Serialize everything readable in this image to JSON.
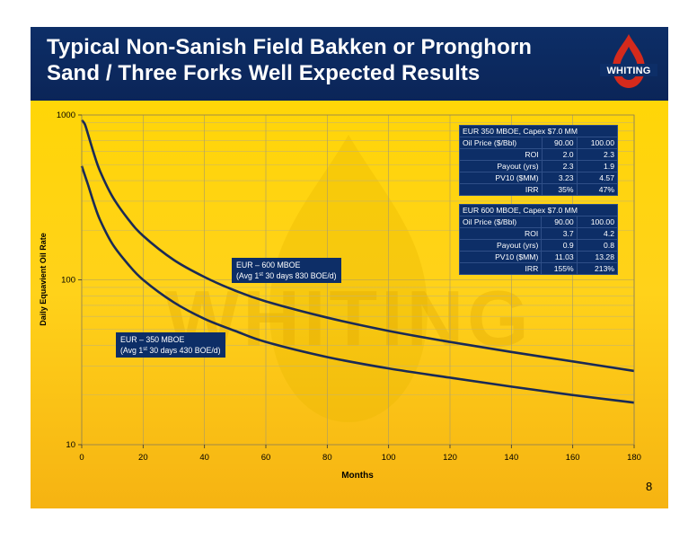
{
  "header": {
    "title_line1": "Typical Non-Sanish Field Bakken or Pronghorn",
    "title_line2": "Sand / Three Forks Well Expected Results",
    "logo_text": "WHITING"
  },
  "watermark_text": "WHITING",
  "page_number": "8",
  "colors": {
    "banner": "#0d2e67",
    "background": "#ffd21a",
    "curve": "#1a2a55",
    "table": "#0d2e67"
  },
  "chart_data": {
    "type": "line",
    "title": "",
    "xlabel": "Months",
    "ylabel": "Daily Equavient Oil Rate",
    "xlim": [
      0,
      180
    ],
    "ylim": [
      10,
      1000
    ],
    "yscale": "log",
    "x_ticks": [
      "0",
      "20",
      "40",
      "60",
      "80",
      "100",
      "120",
      "140",
      "160",
      "180"
    ],
    "y_ticks": [
      "10",
      "100",
      "1000"
    ],
    "grid": true,
    "series": [
      {
        "name": "EUR – 600 MBOE",
        "x": [
          0,
          1,
          2,
          4,
          6,
          10,
          15,
          20,
          30,
          40,
          50,
          60,
          80,
          100,
          120,
          140,
          160,
          180
        ],
        "y": [
          930,
          880,
          770,
          580,
          455,
          320,
          235,
          185,
          132,
          104,
          86,
          74,
          59,
          49,
          42,
          36.5,
          32,
          28
        ]
      },
      {
        "name": "EUR – 350 MBOE",
        "x": [
          0,
          2,
          4,
          6,
          10,
          15,
          20,
          30,
          40,
          50,
          60,
          80,
          100,
          120,
          140,
          160,
          180
        ],
        "y": [
          490,
          380,
          290,
          230,
          165,
          125,
          100,
          73,
          58,
          49,
          42,
          34,
          29,
          25.5,
          22.5,
          20,
          18
        ]
      }
    ],
    "annotations": [
      {
        "line1": "EUR – 600 MBOE",
        "line2_pre": "(Avg 1",
        "line2_sup": "st",
        "line2_post": " 30 days 830 BOE/d)"
      },
      {
        "line1": "EUR – 350 MBOE",
        "line2_pre": "(Avg 1",
        "line2_sup": "st",
        "line2_post": " 30 days 430 BOE/d)"
      }
    ]
  },
  "tables": [
    {
      "title": "EUR 350 MBOE, Capex $7.0 MM",
      "header": [
        "Oil Price ($/Bbl)",
        "90.00",
        "100.00"
      ],
      "rows": [
        [
          "ROI",
          "2.0",
          "2.3"
        ],
        [
          "Payout (yrs)",
          "2.3",
          "1.9"
        ],
        [
          "PV10 ($MM)",
          "3.23",
          "4.57"
        ],
        [
          "IRR",
          "35%",
          "47%"
        ]
      ]
    },
    {
      "title": "EUR 600 MBOE, Capex $7.0 MM",
      "header": [
        "Oil Price ($/Bbl)",
        "90.00",
        "100.00"
      ],
      "rows": [
        [
          "ROI",
          "3.7",
          "4.2"
        ],
        [
          "Payout (yrs)",
          "0.9",
          "0.8"
        ],
        [
          "PV10 ($MM)",
          "11.03",
          "13.28"
        ],
        [
          "IRR",
          "155%",
          "213%"
        ]
      ]
    }
  ]
}
